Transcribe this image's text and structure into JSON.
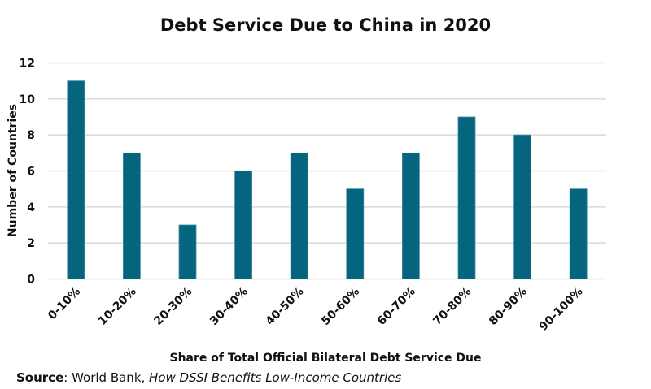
{
  "chart_data": {
    "type": "bar",
    "title": "Debt Service Due to China in 2020",
    "xlabel": "Share of Total Official Bilateral Debt Service Due",
    "ylabel": "Number of Countries",
    "categories": [
      "0-10%",
      "10-20%",
      "20-30%",
      "30-40%",
      "40-50%",
      "50-60%",
      "60-70%",
      "70-80%",
      "80-90%",
      "90-100%"
    ],
    "values": [
      11,
      7,
      3,
      6,
      7,
      5,
      7,
      9,
      8,
      5
    ],
    "ylim": [
      0,
      12
    ],
    "yticks": [
      0,
      2,
      4,
      6,
      8,
      10,
      12
    ],
    "grid": true,
    "bar_color": "#05657e",
    "grid_color": "#d9d9d9"
  },
  "source": {
    "label": "Source",
    "publisher": ": World Bank, ",
    "title": "How DSSI Benefits Low-Income Countries"
  }
}
